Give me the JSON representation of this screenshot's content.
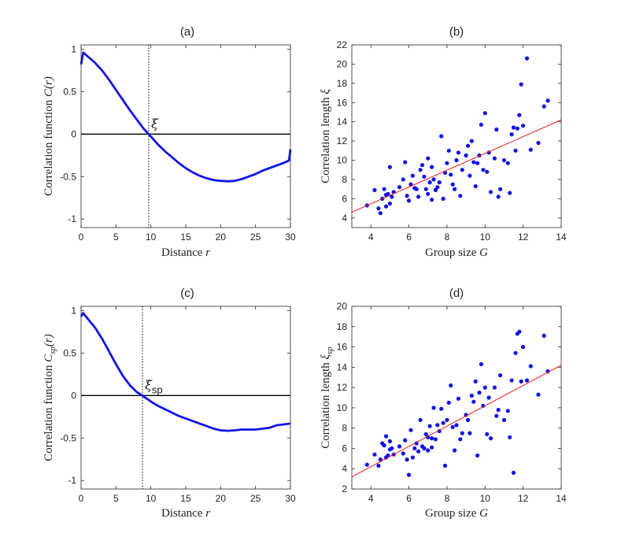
{
  "chart_data": [
    {
      "id": "a",
      "type": "line",
      "title": "(a)",
      "xlabel": "Distance",
      "xlabel_var": "r",
      "ylabel": "Correlation function",
      "ylabel_var": "C(r)",
      "xlim": [
        0,
        30
      ],
      "ylim": [
        -1.1,
        1.05
      ],
      "xticks": [
        0,
        5,
        10,
        15,
        20,
        25,
        30
      ],
      "yticks": [
        -1,
        -0.5,
        0,
        0.5,
        1
      ],
      "vline_x": 9.7,
      "annotation": "ξ",
      "x": [
        0,
        0.3,
        1,
        2,
        3,
        4,
        5,
        6,
        7,
        8,
        9,
        9.7,
        11,
        12,
        13,
        14,
        15,
        16,
        17,
        18,
        19,
        20,
        21,
        22,
        23,
        24,
        25,
        26,
        27,
        28,
        29,
        29.8,
        30
      ],
      "y": [
        0.82,
        0.96,
        0.91,
        0.84,
        0.75,
        0.64,
        0.52,
        0.4,
        0.28,
        0.17,
        0.06,
        0.0,
        -0.12,
        -0.2,
        -0.27,
        -0.34,
        -0.4,
        -0.45,
        -0.49,
        -0.52,
        -0.54,
        -0.55,
        -0.555,
        -0.55,
        -0.53,
        -0.5,
        -0.47,
        -0.43,
        -0.4,
        -0.37,
        -0.34,
        -0.31,
        -0.18
      ]
    },
    {
      "id": "b",
      "type": "scatter",
      "title": "(b)",
      "xlabel": "Group size",
      "xlabel_var": "G",
      "ylabel": "Correlation length",
      "ylabel_var": "ξ",
      "xlim": [
        3,
        14
      ],
      "ylim": [
        3,
        22
      ],
      "xticks": [
        4,
        6,
        8,
        10,
        12,
        14
      ],
      "yticks": [
        4,
        6,
        8,
        10,
        12,
        14,
        16,
        18,
        20,
        22
      ],
      "fit_line": {
        "x": [
          3,
          14
        ],
        "y": [
          4.6,
          14.2
        ]
      },
      "x": [
        3.8,
        4.2,
        4.4,
        4.5,
        4.6,
        4.7,
        4.8,
        4.8,
        4.9,
        5.0,
        5.0,
        5.1,
        5.2,
        5.5,
        5.7,
        5.8,
        5.9,
        6.0,
        6.1,
        6.2,
        6.3,
        6.4,
        6.5,
        6.6,
        6.7,
        6.8,
        6.9,
        7.0,
        7.0,
        7.1,
        7.2,
        7.2,
        7.3,
        7.4,
        7.5,
        7.6,
        7.7,
        7.8,
        7.9,
        8.0,
        8.1,
        8.2,
        8.3,
        8.4,
        8.5,
        8.6,
        8.7,
        8.8,
        9.0,
        9.1,
        9.2,
        9.3,
        9.4,
        9.5,
        9.6,
        9.7,
        9.8,
        9.9,
        10.0,
        10.1,
        10.2,
        10.3,
        10.5,
        10.6,
        10.7,
        10.8,
        11.0,
        11.2,
        11.3,
        11.4,
        11.5,
        11.6,
        11.7,
        11.8,
        11.9,
        12.0,
        12.2,
        12.4,
        12.8,
        13.1,
        13.3
      ],
      "y": [
        5.3,
        6.9,
        5.0,
        4.5,
        6.0,
        7.0,
        5.2,
        6.4,
        6.5,
        5.5,
        9.3,
        6.2,
        6.7,
        7.2,
        8.0,
        9.8,
        6.3,
        5.8,
        7.5,
        8.4,
        7.1,
        7.0,
        6.2,
        9.0,
        9.5,
        8.3,
        7.0,
        10.2,
        6.5,
        7.7,
        9.3,
        5.9,
        8.0,
        6.9,
        7.2,
        7.7,
        12.5,
        6.0,
        8.7,
        9.7,
        11.0,
        8.5,
        7.5,
        7.0,
        10.0,
        10.8,
        6.3,
        9.0,
        10.5,
        11.5,
        8.4,
        12.0,
        9.8,
        7.3,
        9.7,
        10.5,
        13.7,
        9.0,
        14.9,
        8.8,
        10.8,
        6.7,
        10.2,
        13.2,
        6.2,
        7.0,
        10.0,
        9.7,
        6.6,
        12.7,
        13.4,
        11.0,
        13.3,
        14.7,
        17.9,
        13.6,
        20.6,
        11.1,
        11.8,
        15.6,
        16.2
      ]
    },
    {
      "id": "c",
      "type": "line",
      "title": "(c)",
      "xlabel": "Distance",
      "xlabel_var": "r",
      "ylabel": "Correlation function",
      "ylabel_var": "C",
      "ylabel_sub": "sp",
      "ylabel_arg": "(r)",
      "xlim": [
        0,
        30
      ],
      "ylim": [
        -1.1,
        1.05
      ],
      "xticks": [
        0,
        5,
        10,
        15,
        20,
        25,
        30
      ],
      "yticks": [
        -1,
        -0.5,
        0,
        0.5,
        1
      ],
      "vline_x": 8.8,
      "annotation": "ξ",
      "annotation_sub": "sp",
      "x": [
        0,
        0.3,
        1,
        2,
        3,
        4,
        5,
        6,
        7,
        8,
        8.8,
        10,
        11,
        12,
        13,
        14,
        15,
        16,
        17,
        18,
        19,
        20,
        21,
        22,
        23,
        24,
        25,
        26,
        27,
        28,
        29,
        30
      ],
      "y": [
        0.93,
        0.97,
        0.9,
        0.8,
        0.67,
        0.52,
        0.37,
        0.23,
        0.12,
        0.04,
        0.0,
        -0.07,
        -0.12,
        -0.16,
        -0.2,
        -0.24,
        -0.27,
        -0.3,
        -0.33,
        -0.36,
        -0.39,
        -0.41,
        -0.415,
        -0.41,
        -0.4,
        -0.4,
        -0.4,
        -0.39,
        -0.38,
        -0.35,
        -0.34,
        -0.33
      ]
    },
    {
      "id": "d",
      "type": "scatter",
      "title": "(d)",
      "xlabel": "Group size",
      "xlabel_var": "G",
      "ylabel": "Correlation length",
      "ylabel_var": "ξ",
      "ylabel_sub": "sp",
      "xlim": [
        3,
        14
      ],
      "ylim": [
        2,
        20
      ],
      "xticks": [
        4,
        6,
        8,
        10,
        12,
        14
      ],
      "yticks": [
        2,
        4,
        6,
        8,
        10,
        12,
        14,
        16,
        18,
        20
      ],
      "fit_line": {
        "x": [
          3,
          14
        ],
        "y": [
          3.2,
          14.2
        ]
      },
      "x": [
        3.8,
        4.2,
        4.4,
        4.5,
        4.6,
        4.7,
        4.8,
        4.8,
        4.9,
        5.0,
        5.0,
        5.1,
        5.2,
        5.5,
        5.7,
        5.8,
        5.9,
        6.0,
        6.1,
        6.2,
        6.3,
        6.4,
        6.5,
        6.6,
        6.7,
        6.8,
        6.9,
        7.0,
        7.0,
        7.1,
        7.2,
        7.2,
        7.3,
        7.4,
        7.5,
        7.6,
        7.7,
        7.8,
        7.9,
        8.0,
        8.1,
        8.2,
        8.3,
        8.4,
        8.5,
        8.6,
        8.7,
        8.8,
        9.0,
        9.1,
        9.2,
        9.3,
        9.4,
        9.5,
        9.6,
        9.7,
        9.8,
        9.9,
        10.0,
        10.1,
        10.2,
        10.3,
        10.5,
        10.6,
        10.7,
        10.8,
        11.0,
        11.2,
        11.3,
        11.4,
        11.5,
        11.6,
        11.7,
        11.8,
        11.9,
        12.0,
        12.2,
        12.4,
        12.8,
        13.1,
        13.3
      ],
      "y": [
        4.4,
        5.4,
        4.3,
        4.9,
        6.5,
        6.3,
        5.1,
        7.2,
        5.3,
        5.9,
        6.7,
        6.0,
        5.4,
        6.2,
        5.5,
        6.8,
        4.9,
        3.4,
        7.8,
        5.1,
        6.0,
        6.5,
        5.7,
        8.8,
        6.2,
        6.0,
        7.4,
        5.8,
        7.1,
        8.2,
        7.0,
        6.1,
        10.0,
        6.9,
        8.3,
        7.7,
        9.9,
        8.5,
        4.3,
        8.8,
        10.5,
        12.2,
        8.1,
        5.8,
        8.3,
        10.9,
        6.9,
        7.5,
        9.3,
        8.8,
        7.5,
        11.2,
        10.6,
        12.6,
        5.3,
        11.5,
        14.3,
        10.2,
        12.0,
        7.4,
        11.0,
        7.0,
        12.0,
        9.2,
        9.8,
        13.2,
        8.8,
        9.7,
        7.1,
        12.7,
        3.6,
        15.4,
        17.3,
        17.5,
        12.6,
        16.0,
        12.7,
        14.1,
        11.3,
        17.1,
        13.6
      ]
    }
  ]
}
